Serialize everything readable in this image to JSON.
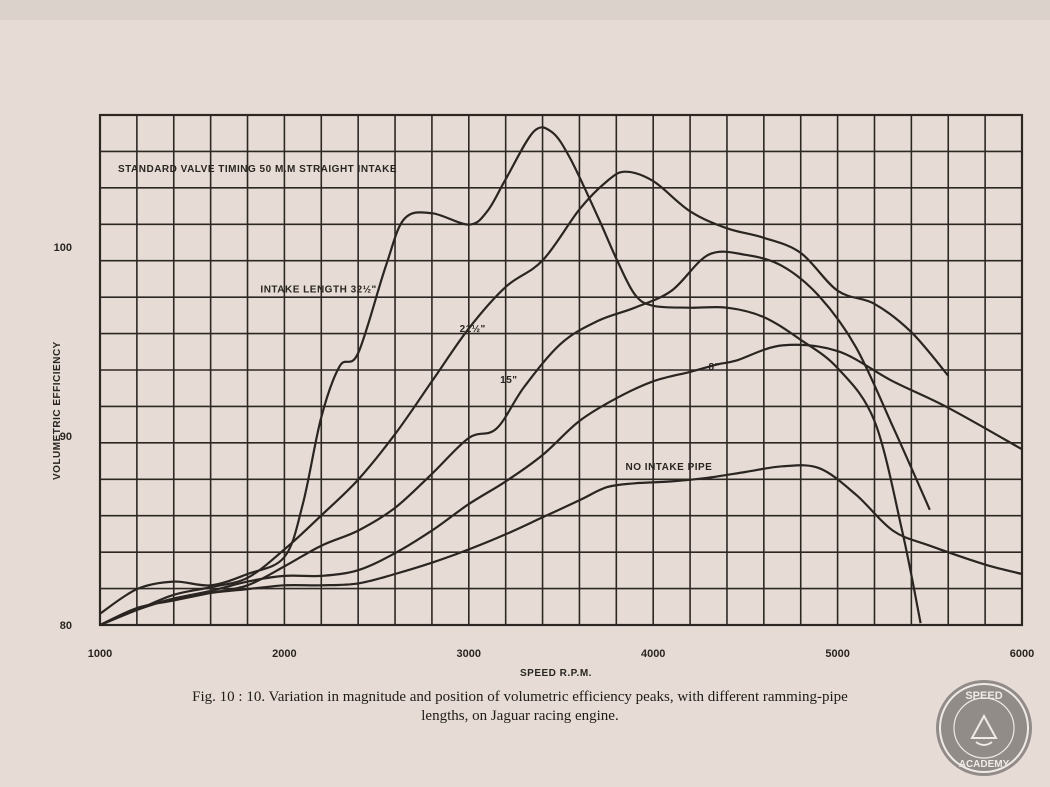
{
  "chart_data": {
    "type": "line",
    "title": "STANDARD VALVE TIMING 50 M.M STRAIGHT INTAKE",
    "xlabel": "SPEED R.P.M.",
    "ylabel": "VOLUMETRIC EFFICIENCY",
    "xlim": [
      1000,
      6000
    ],
    "ylim": [
      80,
      107
    ],
    "x_ticks": [
      1000,
      2000,
      3000,
      4000,
      5000,
      6000
    ],
    "x_tick_labels": [
      "1000",
      "2000",
      "3000",
      "4000",
      "5000",
      "6000"
    ],
    "y_ticks": [
      80,
      90,
      100
    ],
    "y_tick_labels": [
      "80",
      "90",
      "100"
    ],
    "grid": true,
    "series": [
      {
        "name": "INTAKE LENGTH 32½\"",
        "x": [
          1000,
          1200,
          1400,
          1600,
          1800,
          2000,
          2100,
          2200,
          2300,
          2400,
          2550,
          2650,
          2800,
          3000,
          3100,
          3200,
          3350,
          3450,
          3550,
          3700,
          3800,
          3900,
          4000,
          4200,
          4400,
          4600,
          4800,
          5000,
          5200,
          5350,
          5450
        ],
        "y": [
          80.6,
          81.9,
          82.3,
          82.1,
          82.7,
          83.6,
          86.4,
          91.0,
          93.7,
          94.4,
          99.0,
          101.5,
          101.8,
          101.2,
          101.9,
          103.6,
          106.1,
          106.1,
          104.7,
          101.6,
          99.4,
          97.5,
          96.9,
          96.8,
          96.8,
          96.3,
          95.1,
          93.6,
          90.8,
          85.0,
          80.1
        ]
      },
      {
        "name": "21½\"",
        "x": [
          1000,
          1200,
          1400,
          1600,
          1800,
          2000,
          2200,
          2400,
          2600,
          2800,
          3000,
          3200,
          3400,
          3600,
          3750,
          3850,
          4000,
          4200,
          4400,
          4600,
          4800,
          5000,
          5200,
          5400,
          5600
        ],
        "y": [
          80.0,
          80.8,
          81.6,
          82.0,
          82.5,
          84.0,
          85.8,
          87.7,
          90.1,
          92.9,
          95.7,
          97.9,
          99.3,
          102.0,
          103.5,
          104.0,
          103.5,
          101.9,
          101.0,
          100.5,
          99.7,
          97.7,
          97.0,
          95.5,
          93.2
        ]
      },
      {
        "name": "15\"",
        "x": [
          1000,
          1200,
          1400,
          1600,
          1800,
          2000,
          2200,
          2400,
          2600,
          2800,
          3000,
          3150,
          3300,
          3500,
          3700,
          3900,
          4100,
          4300,
          4500,
          4700,
          4900,
          5100,
          5300,
          5500
        ],
        "y": [
          80.0,
          80.9,
          81.3,
          81.7,
          82.1,
          83.1,
          84.2,
          85.0,
          86.2,
          88.0,
          89.9,
          90.4,
          92.6,
          94.9,
          96.1,
          96.8,
          97.7,
          99.6,
          99.6,
          99.0,
          97.4,
          94.7,
          90.5,
          86.1
        ]
      },
      {
        "name": "8\"",
        "x": [
          1000,
          1200,
          1400,
          1600,
          1800,
          2000,
          2200,
          2400,
          2600,
          2800,
          3000,
          3200,
          3400,
          3600,
          3800,
          4000,
          4200,
          4350,
          4450,
          4700,
          5000,
          5300,
          5600,
          6000
        ],
        "y": [
          80.0,
          80.8,
          81.4,
          81.8,
          82.3,
          82.6,
          82.6,
          82.9,
          83.8,
          85.0,
          86.4,
          87.6,
          89.0,
          90.8,
          92.0,
          92.9,
          93.4,
          93.8,
          94.0,
          94.8,
          94.5,
          92.9,
          91.5,
          89.3
        ]
      },
      {
        "name": "NO INTAKE PIPE",
        "x": [
          1000,
          1200,
          1400,
          1600,
          1800,
          2000,
          2200,
          2400,
          2600,
          2800,
          3000,
          3200,
          3400,
          3600,
          3750,
          3900,
          4100,
          4300,
          4500,
          4700,
          4900,
          5100,
          5300,
          5500,
          5800,
          6000
        ],
        "y": [
          80.0,
          80.8,
          81.4,
          81.7,
          81.9,
          82.1,
          82.1,
          82.2,
          82.7,
          83.3,
          84.0,
          84.8,
          85.7,
          86.6,
          87.3,
          87.5,
          87.6,
          87.8,
          88.1,
          88.4,
          88.3,
          86.9,
          85.0,
          84.2,
          83.2,
          82.7
        ]
      }
    ],
    "annotations": [
      {
        "text": "INTAKE LENGTH 32½\"",
        "x": 1870,
        "y": 97.6
      },
      {
        "text": "21½\"",
        "x": 2950,
        "y": 95.5
      },
      {
        "text": "15\"",
        "x": 3170,
        "y": 92.8
      },
      {
        "text": "8\"",
        "x": 4300,
        "y": 93.5
      },
      {
        "text": "NO INTAKE PIPE",
        "x": 3850,
        "y": 88.2
      }
    ]
  },
  "caption": {
    "line1": "Fig. 10 : 10. Variation in magnitude and position of volumetric efficiency peaks, with different ramming-pipe",
    "line2": "lengths, on Jaguar racing engine."
  },
  "watermark": {
    "top": "SPEED",
    "bottom": "ACADEMY"
  }
}
